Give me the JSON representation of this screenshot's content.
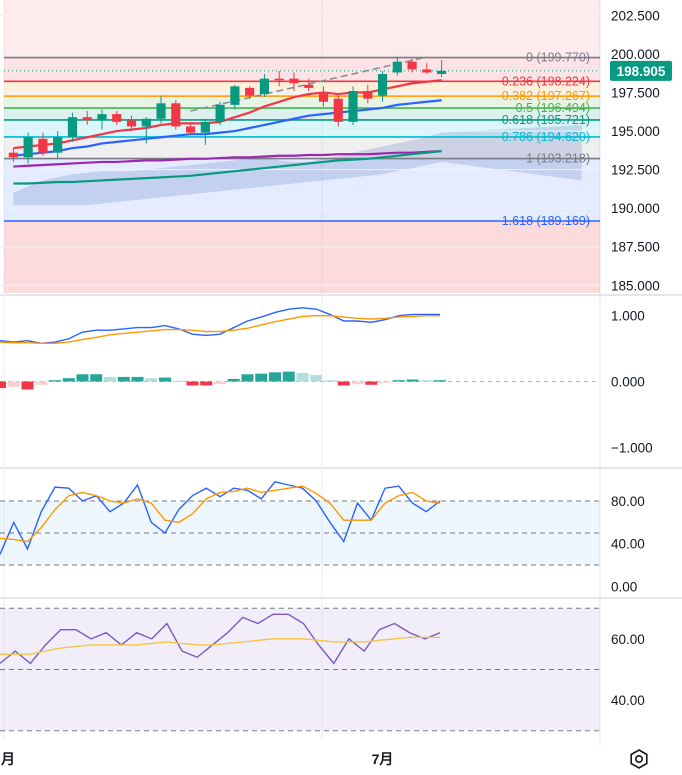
{
  "chart_data": [
    {
      "type": "candlestick",
      "panel": "price",
      "ylim": [
        184.5,
        203.5
      ],
      "y_ticks": [
        "202.500",
        "200.000",
        "197.500",
        "195.000",
        "192.500",
        "190.000",
        "187.500",
        "185.000"
      ],
      "y_tick_values": [
        202.5,
        200.0,
        197.5,
        195.0,
        192.5,
        190.0,
        187.5,
        185.0
      ],
      "last_price": "198.905",
      "last_price_value": 198.905,
      "x_labels": [
        "月",
        "7月"
      ],
      "x_label_index": [
        0,
        25
      ],
      "candles": [
        {
          "o": 193.6,
          "h": 193.9,
          "l": 193.0,
          "c": 193.3
        },
        {
          "o": 193.3,
          "h": 194.9,
          "l": 192.9,
          "c": 194.6
        },
        {
          "o": 194.5,
          "h": 194.9,
          "l": 193.4,
          "c": 193.6
        },
        {
          "o": 193.6,
          "h": 195.0,
          "l": 193.2,
          "c": 194.6
        },
        {
          "o": 194.6,
          "h": 196.2,
          "l": 194.3,
          "c": 195.9
        },
        {
          "o": 195.9,
          "h": 196.3,
          "l": 195.4,
          "c": 195.7
        },
        {
          "o": 195.7,
          "h": 196.4,
          "l": 195.1,
          "c": 196.1
        },
        {
          "o": 196.1,
          "h": 196.3,
          "l": 195.4,
          "c": 195.6
        },
        {
          "o": 195.7,
          "h": 196.0,
          "l": 195.0,
          "c": 195.3
        },
        {
          "o": 195.3,
          "h": 195.9,
          "l": 194.2,
          "c": 195.8
        },
        {
          "o": 195.8,
          "h": 197.3,
          "l": 195.5,
          "c": 196.8
        },
        {
          "o": 196.8,
          "h": 197.0,
          "l": 195.1,
          "c": 195.3
        },
        {
          "o": 195.3,
          "h": 195.6,
          "l": 194.8,
          "c": 194.9
        },
        {
          "o": 194.9,
          "h": 195.8,
          "l": 194.1,
          "c": 195.6
        },
        {
          "o": 195.6,
          "h": 196.9,
          "l": 195.4,
          "c": 196.7
        },
        {
          "o": 196.7,
          "h": 198.0,
          "l": 196.4,
          "c": 197.9
        },
        {
          "o": 197.8,
          "h": 197.9,
          "l": 197.1,
          "c": 197.3
        },
        {
          "o": 197.4,
          "h": 198.7,
          "l": 197.2,
          "c": 198.4
        },
        {
          "o": 198.4,
          "h": 198.9,
          "l": 197.9,
          "c": 198.3
        },
        {
          "o": 198.4,
          "h": 198.8,
          "l": 197.6,
          "c": 198.1
        },
        {
          "o": 198.0,
          "h": 198.4,
          "l": 197.6,
          "c": 197.8
        },
        {
          "o": 197.5,
          "h": 197.9,
          "l": 196.6,
          "c": 196.9
        },
        {
          "o": 197.1,
          "h": 197.3,
          "l": 195.3,
          "c": 195.6
        },
        {
          "o": 195.6,
          "h": 197.9,
          "l": 195.4,
          "c": 197.6
        },
        {
          "o": 197.6,
          "h": 198.0,
          "l": 196.8,
          "c": 197.1
        },
        {
          "o": 197.3,
          "h": 198.9,
          "l": 196.9,
          "c": 198.7
        },
        {
          "o": 198.8,
          "h": 199.8,
          "l": 198.6,
          "c": 199.5
        },
        {
          "o": 199.5,
          "h": 199.7,
          "l": 198.8,
          "c": 199.0
        },
        {
          "o": 199.0,
          "h": 199.4,
          "l": 198.7,
          "c": 198.8
        },
        {
          "o": 198.7,
          "h": 199.6,
          "l": 198.5,
          "c": 198.905
        }
      ],
      "fib_levels": [
        {
          "label": "0 (199.770)",
          "value": 199.77,
          "color": "#787b86"
        },
        {
          "label": "0.236 (198.224)",
          "value": 198.224,
          "color": "#f23645"
        },
        {
          "label": "0.382 (197.267)",
          "value": 197.267,
          "color": "#ff9800"
        },
        {
          "label": "0.5 (196.494)",
          "value": 196.494,
          "color": "#4caf50"
        },
        {
          "label": "0.618 (195.721)",
          "value": 195.721,
          "color": "#089981"
        },
        {
          "label": "0.786 (194.620)",
          "value": 194.62,
          "color": "#00bcd4"
        },
        {
          "label": "1 (193.218)",
          "value": 193.218,
          "color": "#787b86"
        },
        {
          "label": "1.618 (189.169)",
          "value": 189.169,
          "color": "#2962ff"
        }
      ],
      "moving_averages": [
        {
          "color": "#f23645",
          "values": [
            193.9,
            194.0,
            194.1,
            194.2,
            194.4,
            194.6,
            194.8,
            195.0,
            195.1,
            195.2,
            195.4,
            195.5,
            195.5,
            195.5,
            195.6,
            195.9,
            196.2,
            196.6,
            196.9,
            197.2,
            197.4,
            197.5,
            197.4,
            197.5,
            197.5,
            197.7,
            197.9,
            198.1,
            198.2,
            198.3
          ]
        },
        {
          "color": "#2962ff",
          "values": [
            193.4,
            193.5,
            193.6,
            193.7,
            193.9,
            194.0,
            194.2,
            194.3,
            194.4,
            194.5,
            194.6,
            194.7,
            194.8,
            194.8,
            194.9,
            195.0,
            195.2,
            195.4,
            195.6,
            195.8,
            196.0,
            196.1,
            196.2,
            196.3,
            196.4,
            196.5,
            196.7,
            196.8,
            196.9,
            197.0
          ]
        },
        {
          "color": "#9c27b0",
          "values": [
            192.7,
            192.75,
            192.8,
            192.85,
            192.9,
            192.95,
            193.0,
            193.0,
            193.05,
            193.1,
            193.1,
            193.15,
            193.2,
            193.2,
            193.25,
            193.3,
            193.3,
            193.35,
            193.4,
            193.4,
            193.45,
            193.45,
            193.5,
            193.5,
            193.5,
            193.55,
            193.6,
            193.6,
            193.65,
            193.7
          ]
        },
        {
          "color": "#089981",
          "values": [
            191.6,
            191.6,
            191.65,
            191.7,
            191.7,
            191.75,
            191.8,
            191.85,
            191.9,
            191.95,
            192.0,
            192.05,
            192.1,
            192.2,
            192.3,
            192.4,
            192.5,
            192.6,
            192.7,
            192.8,
            192.9,
            193.0,
            193.1,
            193.15,
            193.2,
            193.3,
            193.4,
            193.5,
            193.6,
            193.7
          ]
        }
      ],
      "cloud": {
        "span_a": [
          191.0,
          191.4,
          191.8,
          192.0,
          192.2,
          192.3,
          192.4,
          192.4,
          192.4,
          192.5,
          192.6,
          192.7,
          192.8,
          192.9,
          193.0,
          193.1,
          193.2,
          193.3,
          193.1,
          193.0,
          193.0,
          193.2,
          193.4,
          193.6,
          193.8,
          194.0,
          194.2,
          194.4,
          194.6,
          194.9
        ],
        "span_b": [
          190.2,
          190.2,
          190.2,
          190.2,
          190.2,
          190.2,
          190.3,
          190.4,
          190.5,
          190.6,
          190.7,
          190.8,
          190.9,
          191.0,
          191.1,
          191.2,
          191.3,
          191.4,
          191.5,
          191.6,
          191.7,
          191.8,
          191.9,
          192.0,
          192.1,
          192.2,
          192.4,
          192.6,
          192.8,
          193.0
        ]
      },
      "trendline": {
        "from_index": 12,
        "from_value": 196.3,
        "to_index": 28,
        "to_value": 199.8
      }
    },
    {
      "type": "line+histogram",
      "panel": "macd",
      "ylim": [
        -1.3,
        1.3
      ],
      "y_ticks": [
        "1.000",
        "0.000",
        "−1.000"
      ],
      "y_tick_values": [
        1.0,
        0.0,
        -1.0
      ],
      "series": [
        {
          "color": "#2962ff",
          "values": [
            0.62,
            0.6,
            0.62,
            0.58,
            0.6,
            0.65,
            0.75,
            0.78,
            0.78,
            0.8,
            0.82,
            0.82,
            0.85,
            0.8,
            0.72,
            0.7,
            0.72,
            0.82,
            0.92,
            0.98,
            1.05,
            1.1,
            1.12,
            1.1,
            1.02,
            0.92,
            0.92,
            0.9,
            0.94,
            1.0,
            1.02,
            1.02,
            1.02
          ]
        },
        {
          "color": "#ff9800",
          "values": [
            0.6,
            0.59,
            0.59,
            0.58,
            0.58,
            0.6,
            0.64,
            0.67,
            0.71,
            0.73,
            0.75,
            0.77,
            0.79,
            0.79,
            0.78,
            0.76,
            0.76,
            0.78,
            0.81,
            0.86,
            0.91,
            0.95,
            0.99,
            1.0,
            1.0,
            0.98,
            0.96,
            0.95,
            0.96,
            0.98,
            0.99,
            1.0,
            1.0
          ]
        }
      ],
      "histogram": [
        -0.1,
        -0.08,
        -0.12,
        -0.05,
        0.02,
        0.05,
        0.11,
        0.11,
        0.07,
        0.07,
        0.07,
        0.05,
        0.06,
        0.01,
        -0.06,
        -0.06,
        -0.04,
        0.04,
        0.11,
        0.12,
        0.14,
        0.15,
        0.13,
        0.1,
        0.02,
        -0.06,
        -0.04,
        -0.05,
        -0.02,
        0.02,
        0.03,
        0.02,
        0.02
      ]
    },
    {
      "type": "line",
      "panel": "stochastic",
      "ylim": [
        -10,
        110
      ],
      "y_ticks": [
        "80.00",
        "40.00",
        "0.00"
      ],
      "y_tick_values": [
        80,
        40,
        0
      ],
      "bands": [
        80,
        50,
        20
      ],
      "series": [
        {
          "color": "#2962ff",
          "values": [
            30,
            60,
            35,
            70,
            93,
            92,
            80,
            85,
            70,
            78,
            95,
            60,
            50,
            72,
            85,
            92,
            84,
            92,
            90,
            82,
            98,
            95,
            92,
            80,
            60,
            42,
            78,
            62,
            92,
            94,
            78,
            70,
            80
          ]
        },
        {
          "color": "#ff9800",
          "values": [
            45,
            44,
            42,
            55,
            72,
            85,
            88,
            85,
            80,
            78,
            82,
            78,
            62,
            60,
            68,
            82,
            88,
            89,
            92,
            88,
            90,
            92,
            94,
            87,
            78,
            62,
            62,
            62,
            78,
            85,
            88,
            80,
            78
          ]
        }
      ]
    },
    {
      "type": "line",
      "panel": "rsi",
      "ylim": [
        27,
        73
      ],
      "y_ticks": [
        "60.00",
        "40.00"
      ],
      "y_tick_values": [
        60,
        40
      ],
      "bands": [
        70,
        50,
        30
      ],
      "series": [
        {
          "color": "#7e57c2",
          "values": [
            52,
            56,
            52,
            58,
            63,
            63,
            60,
            62,
            58,
            62,
            60,
            65,
            56,
            54,
            58,
            62,
            67,
            65,
            68,
            68,
            65,
            58,
            52,
            60,
            56,
            63,
            65,
            62,
            60,
            62
          ]
        },
        {
          "color": "#f4c542",
          "values": [
            55,
            55,
            55,
            56,
            57,
            57.5,
            58,
            58,
            58,
            58,
            58.5,
            59,
            58.5,
            58,
            58,
            58.5,
            59,
            59.5,
            60,
            60,
            60,
            59.5,
            59,
            59,
            59,
            59.5,
            60,
            60.5,
            60.5,
            60.5
          ]
        }
      ]
    }
  ],
  "icons": {
    "settings": "settings-icon"
  }
}
